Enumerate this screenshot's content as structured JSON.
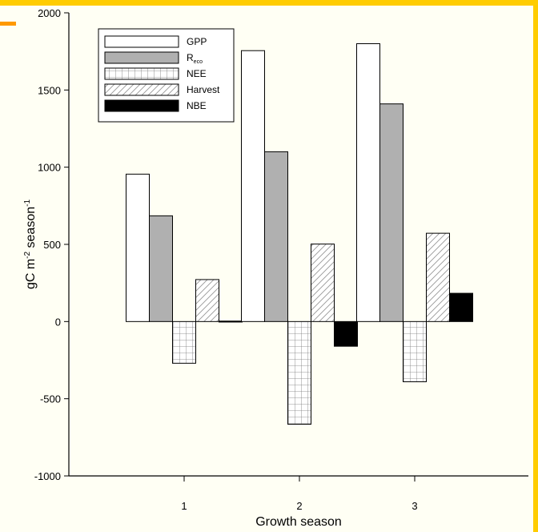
{
  "chart_data": {
    "type": "bar",
    "categories": [
      "1",
      "2",
      "3"
    ],
    "xlabel": "Growth season",
    "ylabel_main": "gC m",
    "ylabel_sup1": "-2",
    "ylabel_mid": " season",
    "ylabel_sup2": "-1",
    "ylim": [
      -1000,
      2000
    ],
    "yticks": [
      -1000,
      -500,
      0,
      500,
      1000,
      1500,
      2000
    ],
    "series": [
      {
        "name": "GPP",
        "fill": "white",
        "values": [
          955,
          1755,
          1800
        ]
      },
      {
        "name": "R",
        "name_sub": "eco",
        "fill": "gray",
        "values": [
          685,
          1100,
          1410
        ]
      },
      {
        "name": "NEE",
        "fill": "grid",
        "values": [
          -270,
          -665,
          -390
        ]
      },
      {
        "name": "Harvest",
        "fill": "hatch",
        "values": [
          272,
          502,
          572
        ]
      },
      {
        "name": "NBE",
        "fill": "black",
        "values": [
          3,
          -160,
          183
        ]
      }
    ],
    "legend_position": "top-left",
    "grid": false
  },
  "colors": {
    "background": "#fffff4",
    "frame": "#ffcc00",
    "accent": "#ff9900",
    "gray_bar": "#b0b0b0"
  }
}
